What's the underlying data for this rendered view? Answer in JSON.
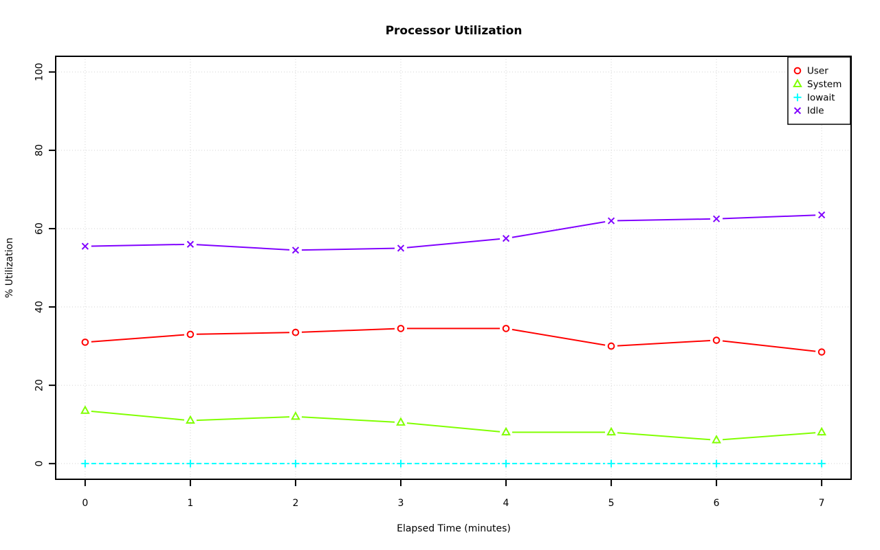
{
  "title": "Processor Utilization",
  "chart_data": {
    "type": "line",
    "title": "Processor Utilization",
    "xlabel": "Elapsed Time (minutes)",
    "ylabel": "% Utilization",
    "x": [
      0,
      1,
      2,
      3,
      4,
      5,
      6,
      7
    ],
    "xticks": [
      "0",
      "1",
      "2",
      "3",
      "4",
      "5",
      "6",
      "7"
    ],
    "yticks": [
      "0",
      "20",
      "40",
      "60",
      "80",
      "100"
    ],
    "ytick_values": [
      0,
      20,
      40,
      60,
      80,
      100
    ],
    "xlim": [
      0,
      7
    ],
    "ylim": [
      0,
      100
    ],
    "grid": true,
    "grid_color": "#d2d2d2",
    "legend_position": "top-right",
    "series": [
      {
        "name": "User",
        "color": "#ff0000",
        "marker": "circle",
        "line_style": "solid",
        "values": [
          31,
          33,
          33.5,
          34.5,
          34.5,
          30,
          31.5,
          28.5
        ]
      },
      {
        "name": "System",
        "color": "#80ff00",
        "marker": "triangle",
        "line_style": "solid",
        "values": [
          13.5,
          11,
          12,
          10.5,
          8,
          8,
          6,
          8
        ]
      },
      {
        "name": "Iowait",
        "color": "#00ffff",
        "marker": "plus",
        "line_style": "dashed",
        "values": [
          0,
          0,
          0,
          0,
          0,
          0,
          0,
          0
        ]
      },
      {
        "name": "Idle",
        "color": "#8000ff",
        "marker": "x",
        "line_style": "solid",
        "values": [
          55.5,
          56,
          54.5,
          55,
          57.5,
          62,
          62.5,
          63.5
        ]
      }
    ],
    "axis_color": "#000000",
    "background": "#ffffff"
  }
}
